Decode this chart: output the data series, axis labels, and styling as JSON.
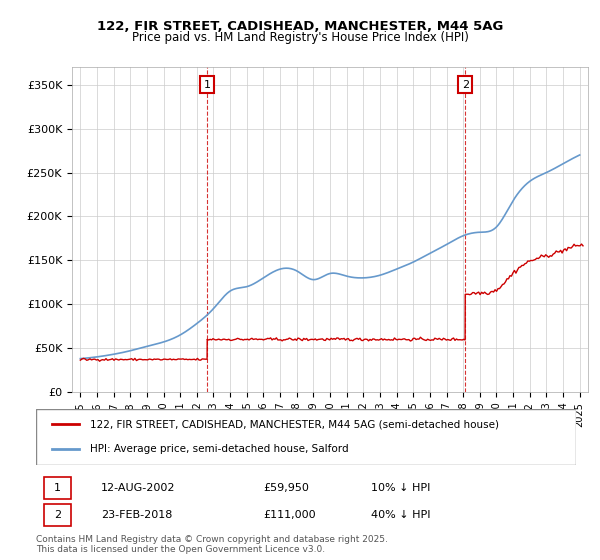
{
  "title": "122, FIR STREET, CADISHEAD, MANCHESTER, M44 5AG",
  "subtitle": "Price paid vs. HM Land Registry's House Price Index (HPI)",
  "legend_line1": "122, FIR STREET, CADISHEAD, MANCHESTER, M44 5AG (semi-detached house)",
  "legend_line2": "HPI: Average price, semi-detached house, Salford",
  "annotation1_label": "1",
  "annotation1_date": "12-AUG-2002",
  "annotation1_price": "£59,950",
  "annotation1_hpi": "10% ↓ HPI",
  "annotation2_label": "2",
  "annotation2_date": "23-FEB-2018",
  "annotation2_price": "£111,000",
  "annotation2_hpi": "40% ↓ HPI",
  "footer": "Contains HM Land Registry data © Crown copyright and database right 2025.\nThis data is licensed under the Open Government Licence v3.0.",
  "line1_color": "#cc0000",
  "line2_color": "#6699cc",
  "vline_color": "#cc0000",
  "background_color": "#ffffff",
  "ylim": [
    0,
    370000
  ],
  "yticks": [
    0,
    50000,
    100000,
    150000,
    200000,
    250000,
    300000,
    350000
  ],
  "xlim_start": 1994.5,
  "xlim_end": 2025.5
}
